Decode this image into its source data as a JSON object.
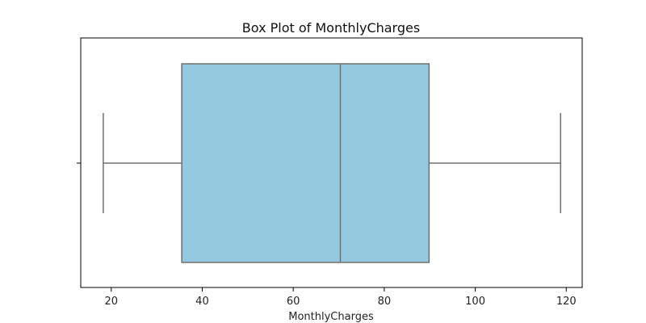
{
  "chart_data": {
    "type": "box",
    "title": "Box Plot of MonthlyCharges",
    "xlabel": "MonthlyCharges",
    "ylabel": "",
    "orientation": "horizontal",
    "xlim": [
      13.3,
      123.5
    ],
    "x_ticks": [
      20,
      40,
      60,
      80,
      100,
      120
    ],
    "box": {
      "min": 18.25,
      "q1": 35.5,
      "median": 70.35,
      "q3": 89.85,
      "max": 118.75
    },
    "colors": {
      "box_fill": "#95c9df",
      "lines": "#707070"
    },
    "grid": false,
    "legend": "none"
  }
}
